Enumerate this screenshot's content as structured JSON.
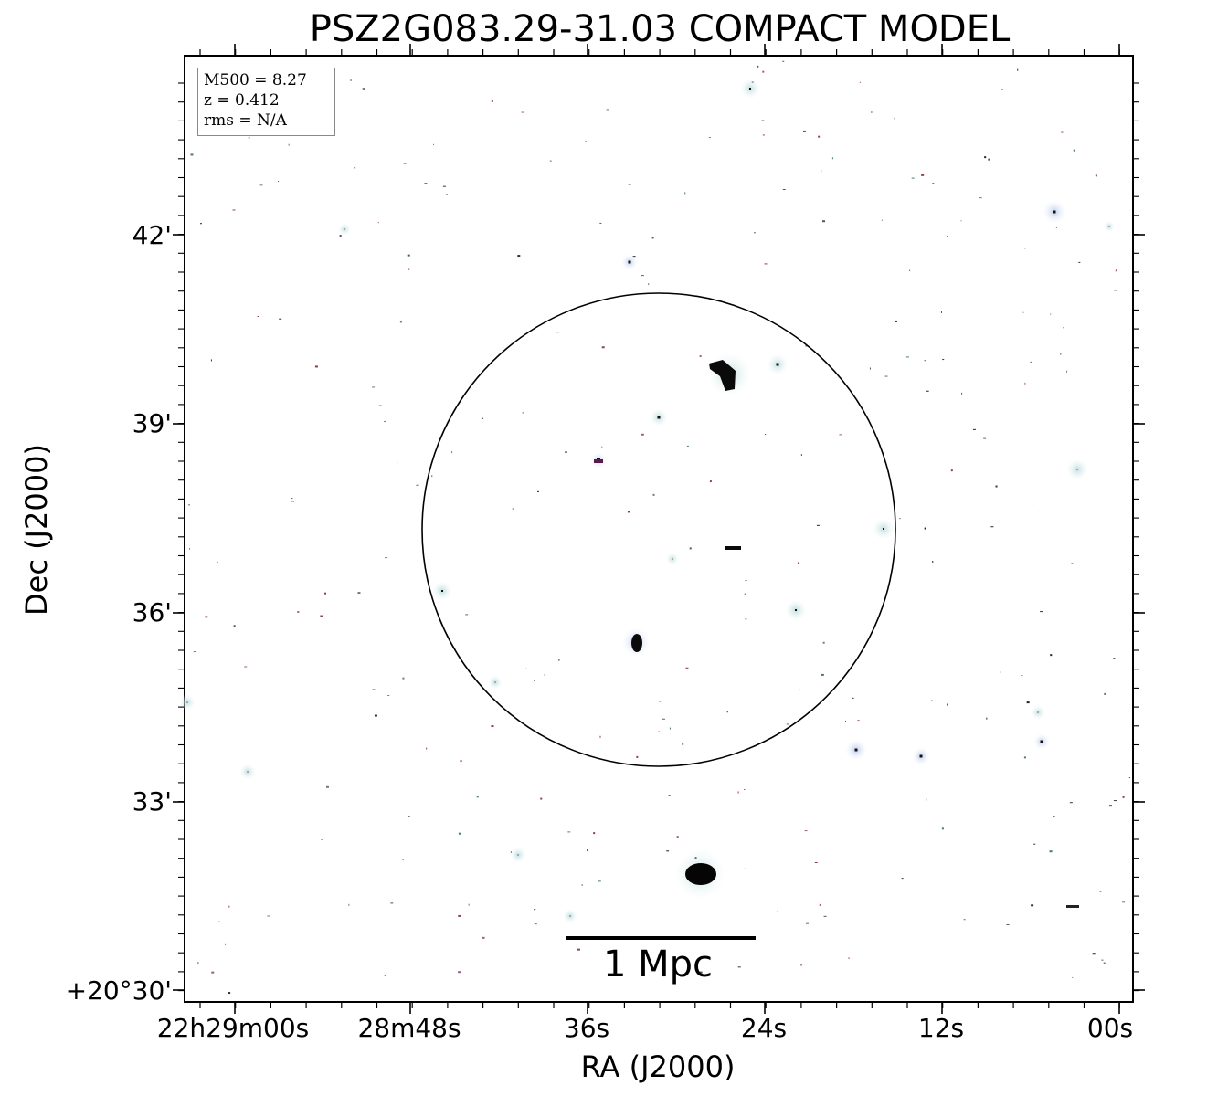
{
  "title": "PSZ2G083.29-31.03 COMPACT MODEL",
  "infobox": {
    "mass": "M500 = 8.27",
    "redshift": "z = 0.412",
    "rms": "rms = N/A"
  },
  "axes": {
    "xlabel": "RA (J2000)",
    "ylabel": "Dec (J2000)",
    "xticks": [
      "22h29m00s",
      "28m48s",
      "36s",
      "24s",
      "12s",
      "00s"
    ],
    "yticks": [
      "42'",
      "39'",
      "36'",
      "33'",
      "+20°30'"
    ]
  },
  "scalebar": {
    "label": "1 Mpc"
  },
  "colors": {
    "frame": "#000000",
    "circle": "#000000",
    "source_glow": "#cfe6e6",
    "source_core": "#000000"
  }
}
